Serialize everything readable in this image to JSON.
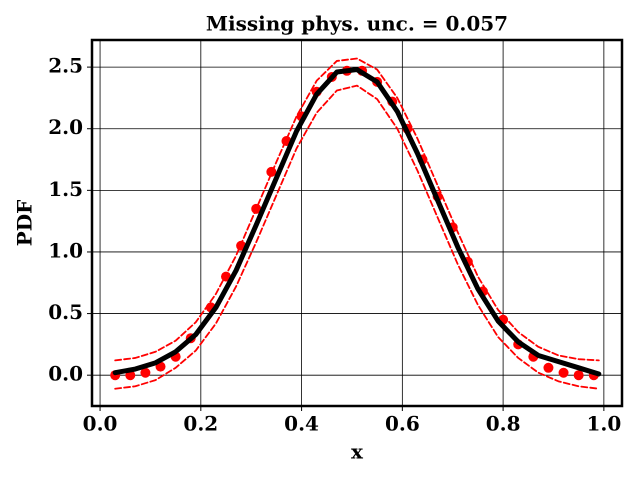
{
  "chart_data": {
    "type": "line",
    "title": "Missing phys. unc. = 0.057",
    "xlabel": "x",
    "ylabel": "PDF",
    "xlim": [
      -0.016,
      1.036
    ],
    "ylim": [
      -0.25,
      2.72
    ],
    "xticks": [
      {
        "value": 0,
        "label": "0.0"
      },
      {
        "value": 0.2,
        "label": "0.2"
      },
      {
        "value": 0.4,
        "label": "0.4"
      },
      {
        "value": 0.6,
        "label": "0.6"
      },
      {
        "value": 0.8,
        "label": "0.8"
      },
      {
        "value": 1,
        "label": "1.0"
      }
    ],
    "yticks": [
      {
        "value": 0,
        "label": "0.0"
      },
      0.5,
      {
        "value": 1,
        "label": "1.0"
      },
      1.5,
      {
        "value": 2,
        "label": "2.0"
      },
      2.5
    ],
    "grid": true,
    "series": [
      {
        "kind": "line",
        "dash": true,
        "color": "#ff0000",
        "x": [
          0.03,
          0.07,
          0.11,
          0.15,
          0.19,
          0.23,
          0.27,
          0.31,
          0.35,
          0.39,
          0.43,
          0.47,
          0.51,
          0.55,
          0.59,
          0.63,
          0.67,
          0.71,
          0.75,
          0.79,
          0.83,
          0.87,
          0.91,
          0.95,
          0.99
        ],
        "values": [
          -0.11,
          -0.09,
          -0.04,
          0.06,
          0.2,
          0.42,
          0.72,
          1.08,
          1.46,
          1.84,
          2.13,
          2.31,
          2.35,
          2.24,
          2.0,
          1.66,
          1.28,
          0.9,
          0.57,
          0.31,
          0.14,
          0.02,
          -0.05,
          -0.09,
          -0.11
        ]
      },
      {
        "kind": "line",
        "dash": true,
        "color": "#ff0000",
        "x": [
          0.03,
          0.07,
          0.11,
          0.15,
          0.19,
          0.23,
          0.27,
          0.31,
          0.35,
          0.39,
          0.43,
          0.47,
          0.51,
          0.55,
          0.59,
          0.63,
          0.67,
          0.71,
          0.75,
          0.79,
          0.83,
          0.87,
          0.91,
          0.95,
          0.99
        ],
        "values": [
          0.12,
          0.14,
          0.19,
          0.28,
          0.43,
          0.66,
          0.97,
          1.35,
          1.73,
          2.1,
          2.39,
          2.55,
          2.57,
          2.48,
          2.25,
          1.92,
          1.54,
          1.16,
          0.8,
          0.53,
          0.35,
          0.23,
          0.16,
          0.13,
          0.12
        ]
      },
      {
        "kind": "scatter",
        "color": "#ff0000",
        "x": [
          0.03,
          0.06,
          0.09,
          0.12,
          0.15,
          0.18,
          0.22,
          0.25,
          0.28,
          0.31,
          0.34,
          0.37,
          0.4,
          0.43,
          0.46,
          0.49,
          0.52,
          0.55,
          0.58,
          0.61,
          0.64,
          0.67,
          0.7,
          0.73,
          0.76,
          0.8,
          0.83,
          0.86,
          0.89,
          0.92,
          0.95,
          0.98
        ],
        "values": [
          0.0,
          0.0,
          0.02,
          0.07,
          0.15,
          0.3,
          0.55,
          0.8,
          1.05,
          1.35,
          1.65,
          1.9,
          2.1,
          2.3,
          2.42,
          2.47,
          2.47,
          2.38,
          2.22,
          2.0,
          1.75,
          1.45,
          1.2,
          0.92,
          0.68,
          0.45,
          0.25,
          0.15,
          0.06,
          0.02,
          0.0,
          0.0
        ]
      },
      {
        "kind": "line",
        "dash": false,
        "color": "#000000",
        "x": [
          0.03,
          0.07,
          0.11,
          0.15,
          0.19,
          0.23,
          0.27,
          0.31,
          0.35,
          0.39,
          0.43,
          0.47,
          0.51,
          0.55,
          0.59,
          0.63,
          0.67,
          0.71,
          0.75,
          0.79,
          0.83,
          0.87,
          0.91,
          0.95,
          0.99
        ],
        "values": [
          0.02,
          0.05,
          0.1,
          0.19,
          0.33,
          0.55,
          0.85,
          1.22,
          1.6,
          1.98,
          2.28,
          2.46,
          2.48,
          2.38,
          2.14,
          1.8,
          1.42,
          1.04,
          0.7,
          0.44,
          0.27,
          0.16,
          0.11,
          0.06,
          0.01
        ]
      }
    ]
  }
}
